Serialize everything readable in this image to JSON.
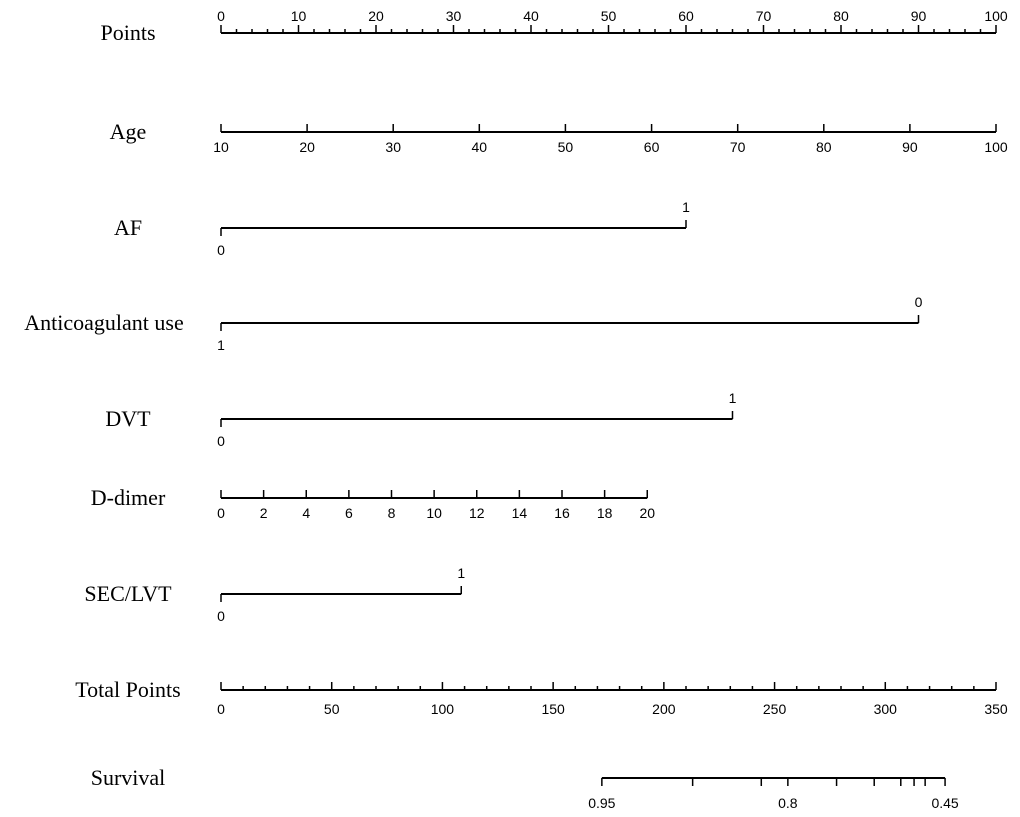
{
  "chart_data": {
    "type": "nomogram",
    "rows": [
      {
        "name": "Points",
        "kind": "continuous",
        "label_side": "above",
        "points_range": [
          0,
          100
        ],
        "ticks": [
          {
            "label": "0",
            "points": 0
          },
          {
            "label": "10",
            "points": 10
          },
          {
            "label": "20",
            "points": 20
          },
          {
            "label": "30",
            "points": 30
          },
          {
            "label": "40",
            "points": 40
          },
          {
            "label": "50",
            "points": 50
          },
          {
            "label": "60",
            "points": 60
          },
          {
            "label": "70",
            "points": 70
          },
          {
            "label": "80",
            "points": 80
          },
          {
            "label": "90",
            "points": 90
          },
          {
            "label": "100",
            "points": 100
          }
        ],
        "minor_step": 2
      },
      {
        "name": "Age",
        "kind": "continuous",
        "label_side": "below",
        "points_range": [
          0,
          100
        ],
        "ticks": [
          {
            "label": "10",
            "points": 0
          },
          {
            "label": "20",
            "points": 11.11
          },
          {
            "label": "30",
            "points": 22.22
          },
          {
            "label": "40",
            "points": 33.33
          },
          {
            "label": "50",
            "points": 44.44
          },
          {
            "label": "60",
            "points": 55.56
          },
          {
            "label": "70",
            "points": 66.67
          },
          {
            "label": "80",
            "points": 77.78
          },
          {
            "label": "90",
            "points": 88.89
          },
          {
            "label": "100",
            "points": 100
          }
        ]
      },
      {
        "name": "AF",
        "kind": "binary",
        "points_range": [
          0,
          60
        ],
        "levels": [
          {
            "label": "0",
            "points": 0,
            "side": "below"
          },
          {
            "label": "1",
            "points": 60,
            "side": "above"
          }
        ]
      },
      {
        "name": "Anticoagulant use",
        "kind": "binary",
        "points_range": [
          0,
          90
        ],
        "levels": [
          {
            "label": "1",
            "points": 0,
            "side": "below"
          },
          {
            "label": "0",
            "points": 90,
            "side": "above"
          }
        ]
      },
      {
        "name": "DVT",
        "kind": "binary",
        "points_range": [
          0,
          66
        ],
        "levels": [
          {
            "label": "0",
            "points": 0,
            "side": "below"
          },
          {
            "label": "1",
            "points": 66,
            "side": "above"
          }
        ]
      },
      {
        "name": "D-dimer",
        "kind": "continuous",
        "label_side": "below",
        "points_range": [
          0,
          55
        ],
        "ticks": [
          {
            "label": "0",
            "points": 0
          },
          {
            "label": "2",
            "points": 5.5
          },
          {
            "label": "4",
            "points": 11
          },
          {
            "label": "6",
            "points": 16.5
          },
          {
            "label": "8",
            "points": 22
          },
          {
            "label": "10",
            "points": 27.5
          },
          {
            "label": "12",
            "points": 33
          },
          {
            "label": "14",
            "points": 38.5
          },
          {
            "label": "16",
            "points": 44
          },
          {
            "label": "18",
            "points": 49.5
          },
          {
            "label": "20",
            "points": 55
          }
        ]
      },
      {
        "name": "SEC/LVT",
        "kind": "binary",
        "points_range": [
          0,
          31
        ],
        "levels": [
          {
            "label": "0",
            "points": 0,
            "side": "below"
          },
          {
            "label": "1",
            "points": 31,
            "side": "above"
          }
        ]
      },
      {
        "name": "Total Points",
        "kind": "continuous",
        "label_side": "below",
        "total_range": [
          0,
          350
        ],
        "ticks": [
          {
            "label": "0",
            "total": 0
          },
          {
            "label": "50",
            "total": 50
          },
          {
            "label": "100",
            "total": 100
          },
          {
            "label": "150",
            "total": 150
          },
          {
            "label": "200",
            "total": 200
          },
          {
            "label": "250",
            "total": 250
          },
          {
            "label": "300",
            "total": 300
          },
          {
            "label": "350",
            "total": 350
          }
        ],
        "minor_step": 10
      },
      {
        "name": "Survival",
        "kind": "survival",
        "label_side": "below",
        "total_range": [
          172,
          327
        ],
        "ticks": [
          {
            "label": "0.95",
            "total": 172
          },
          {
            "label": "",
            "total": 213
          },
          {
            "label": "",
            "total": 244
          },
          {
            "label": "0.8",
            "total": 256
          },
          {
            "label": "",
            "total": 278
          },
          {
            "label": "",
            "total": 295
          },
          {
            "label": "",
            "total": 307
          },
          {
            "label": "",
            "total": 313
          },
          {
            "label": "",
            "total": 318
          },
          {
            "label": "0.45",
            "total": 327
          }
        ]
      }
    ]
  }
}
